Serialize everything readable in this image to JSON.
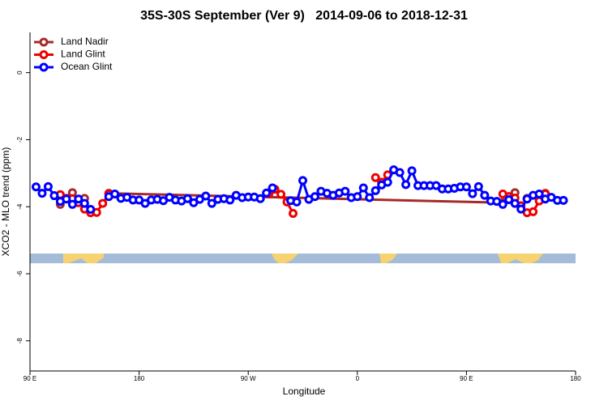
{
  "chart_data": {
    "type": "line",
    "title": "35S-30S September (Ver 9)   2014-09-06 to 2018-12-31",
    "xlabel": "Longitude",
    "ylabel": "XCO2 - MLO trend (ppm)",
    "xlim": [
      90,
      540
    ],
    "xticks": [
      {
        "value": 90,
        "label": "90 E"
      },
      180,
      {
        "value": 270,
        "label": "90 W"
      },
      {
        "value": 360,
        "label": "0"
      },
      {
        "value": 450,
        "label": "90 E"
      },
      {
        "value": 540,
        "label": "180"
      }
    ],
    "ylim": [
      -8.9,
      1.2
    ],
    "yticks": [
      0,
      -2,
      -4,
      -6,
      -8
    ],
    "legend": "upper left",
    "series": [
      {
        "name": "Land Nadir",
        "color": "#a52a2a",
        "x": [
          115,
          120,
          125,
          130,
          135,
          140,
          155,
          480,
          485,
          490,
          495,
          500,
          505,
          515
        ],
        "values": [
          -3.93,
          -3.75,
          -3.58,
          -3.8,
          -3.75,
          null,
          -3.6,
          -3.88,
          -3.7,
          -3.58,
          null,
          -3.75,
          null,
          -3.6
        ]
      },
      {
        "name": "Land Glint",
        "color": "#ee0000",
        "x": [
          115,
          120,
          125,
          130,
          135,
          140,
          145,
          150,
          155,
          160,
          287,
          292,
          297,
          302,
          307,
          312,
          375,
          380,
          385,
          390,
          480,
          485,
          490,
          495,
          500,
          505,
          510,
          515
        ],
        "values": [
          -3.64,
          -3.75,
          -3.76,
          -3.88,
          -4.07,
          -4.18,
          -4.17,
          -3.9,
          -3.62,
          null,
          -3.62,
          -3.48,
          -3.63,
          -3.86,
          -4.2,
          null,
          -3.13,
          -3.27,
          -3.05,
          null,
          -3.62,
          -3.7,
          -3.74,
          -3.97,
          -4.18,
          -4.15,
          -3.83,
          -3.62
        ]
      },
      {
        "name": "Ocean Glint",
        "color": "#0000ff",
        "x": [
          95,
          100,
          105,
          110,
          115,
          120,
          125,
          130,
          135,
          140,
          145,
          155,
          160,
          165,
          170,
          175,
          180,
          185,
          190,
          195,
          200,
          205,
          210,
          215,
          220,
          225,
          230,
          235,
          240,
          245,
          250,
          255,
          260,
          265,
          270,
          275,
          280,
          285,
          290,
          295,
          305,
          310,
          315,
          320,
          325,
          330,
          335,
          340,
          345,
          350,
          355,
          360,
          365,
          370,
          375,
          380,
          385,
          390,
          395,
          400,
          405,
          410,
          415,
          420,
          425,
          430,
          435,
          440,
          445,
          450,
          455,
          460,
          465,
          470,
          475,
          480,
          485,
          490,
          495,
          500,
          505,
          510,
          515,
          520,
          525,
          530
        ],
        "values": [
          -3.41,
          -3.6,
          -3.4,
          -3.67,
          -3.84,
          -3.77,
          -3.93,
          -3.77,
          -3.9,
          -4.08,
          null,
          -3.7,
          -3.62,
          -3.75,
          -3.72,
          -3.8,
          -3.8,
          -3.9,
          -3.8,
          -3.78,
          -3.82,
          -3.72,
          -3.8,
          -3.83,
          -3.76,
          -3.88,
          -3.78,
          -3.68,
          -3.9,
          -3.78,
          -3.76,
          -3.8,
          -3.66,
          -3.73,
          -3.71,
          -3.71,
          -3.76,
          -3.59,
          -3.44,
          null,
          -3.82,
          -3.86,
          -3.22,
          -3.78,
          -3.7,
          -3.54,
          -3.6,
          -3.66,
          -3.59,
          -3.54,
          -3.73,
          -3.7,
          -3.44,
          -3.73,
          -3.52,
          -3.35,
          -3.27,
          -2.9,
          -2.98,
          -3.34,
          -2.93,
          -3.37,
          -3.37,
          -3.37,
          -3.37,
          -3.47,
          -3.47,
          -3.45,
          -3.41,
          -3.41,
          -3.61,
          -3.4,
          -3.66,
          -3.83,
          -3.84,
          -3.93,
          -3.79,
          -3.9,
          -4.07,
          -3.77,
          -3.66,
          -3.62,
          -3.77,
          -3.72,
          -3.81,
          -3.81
        ]
      }
    ]
  }
}
